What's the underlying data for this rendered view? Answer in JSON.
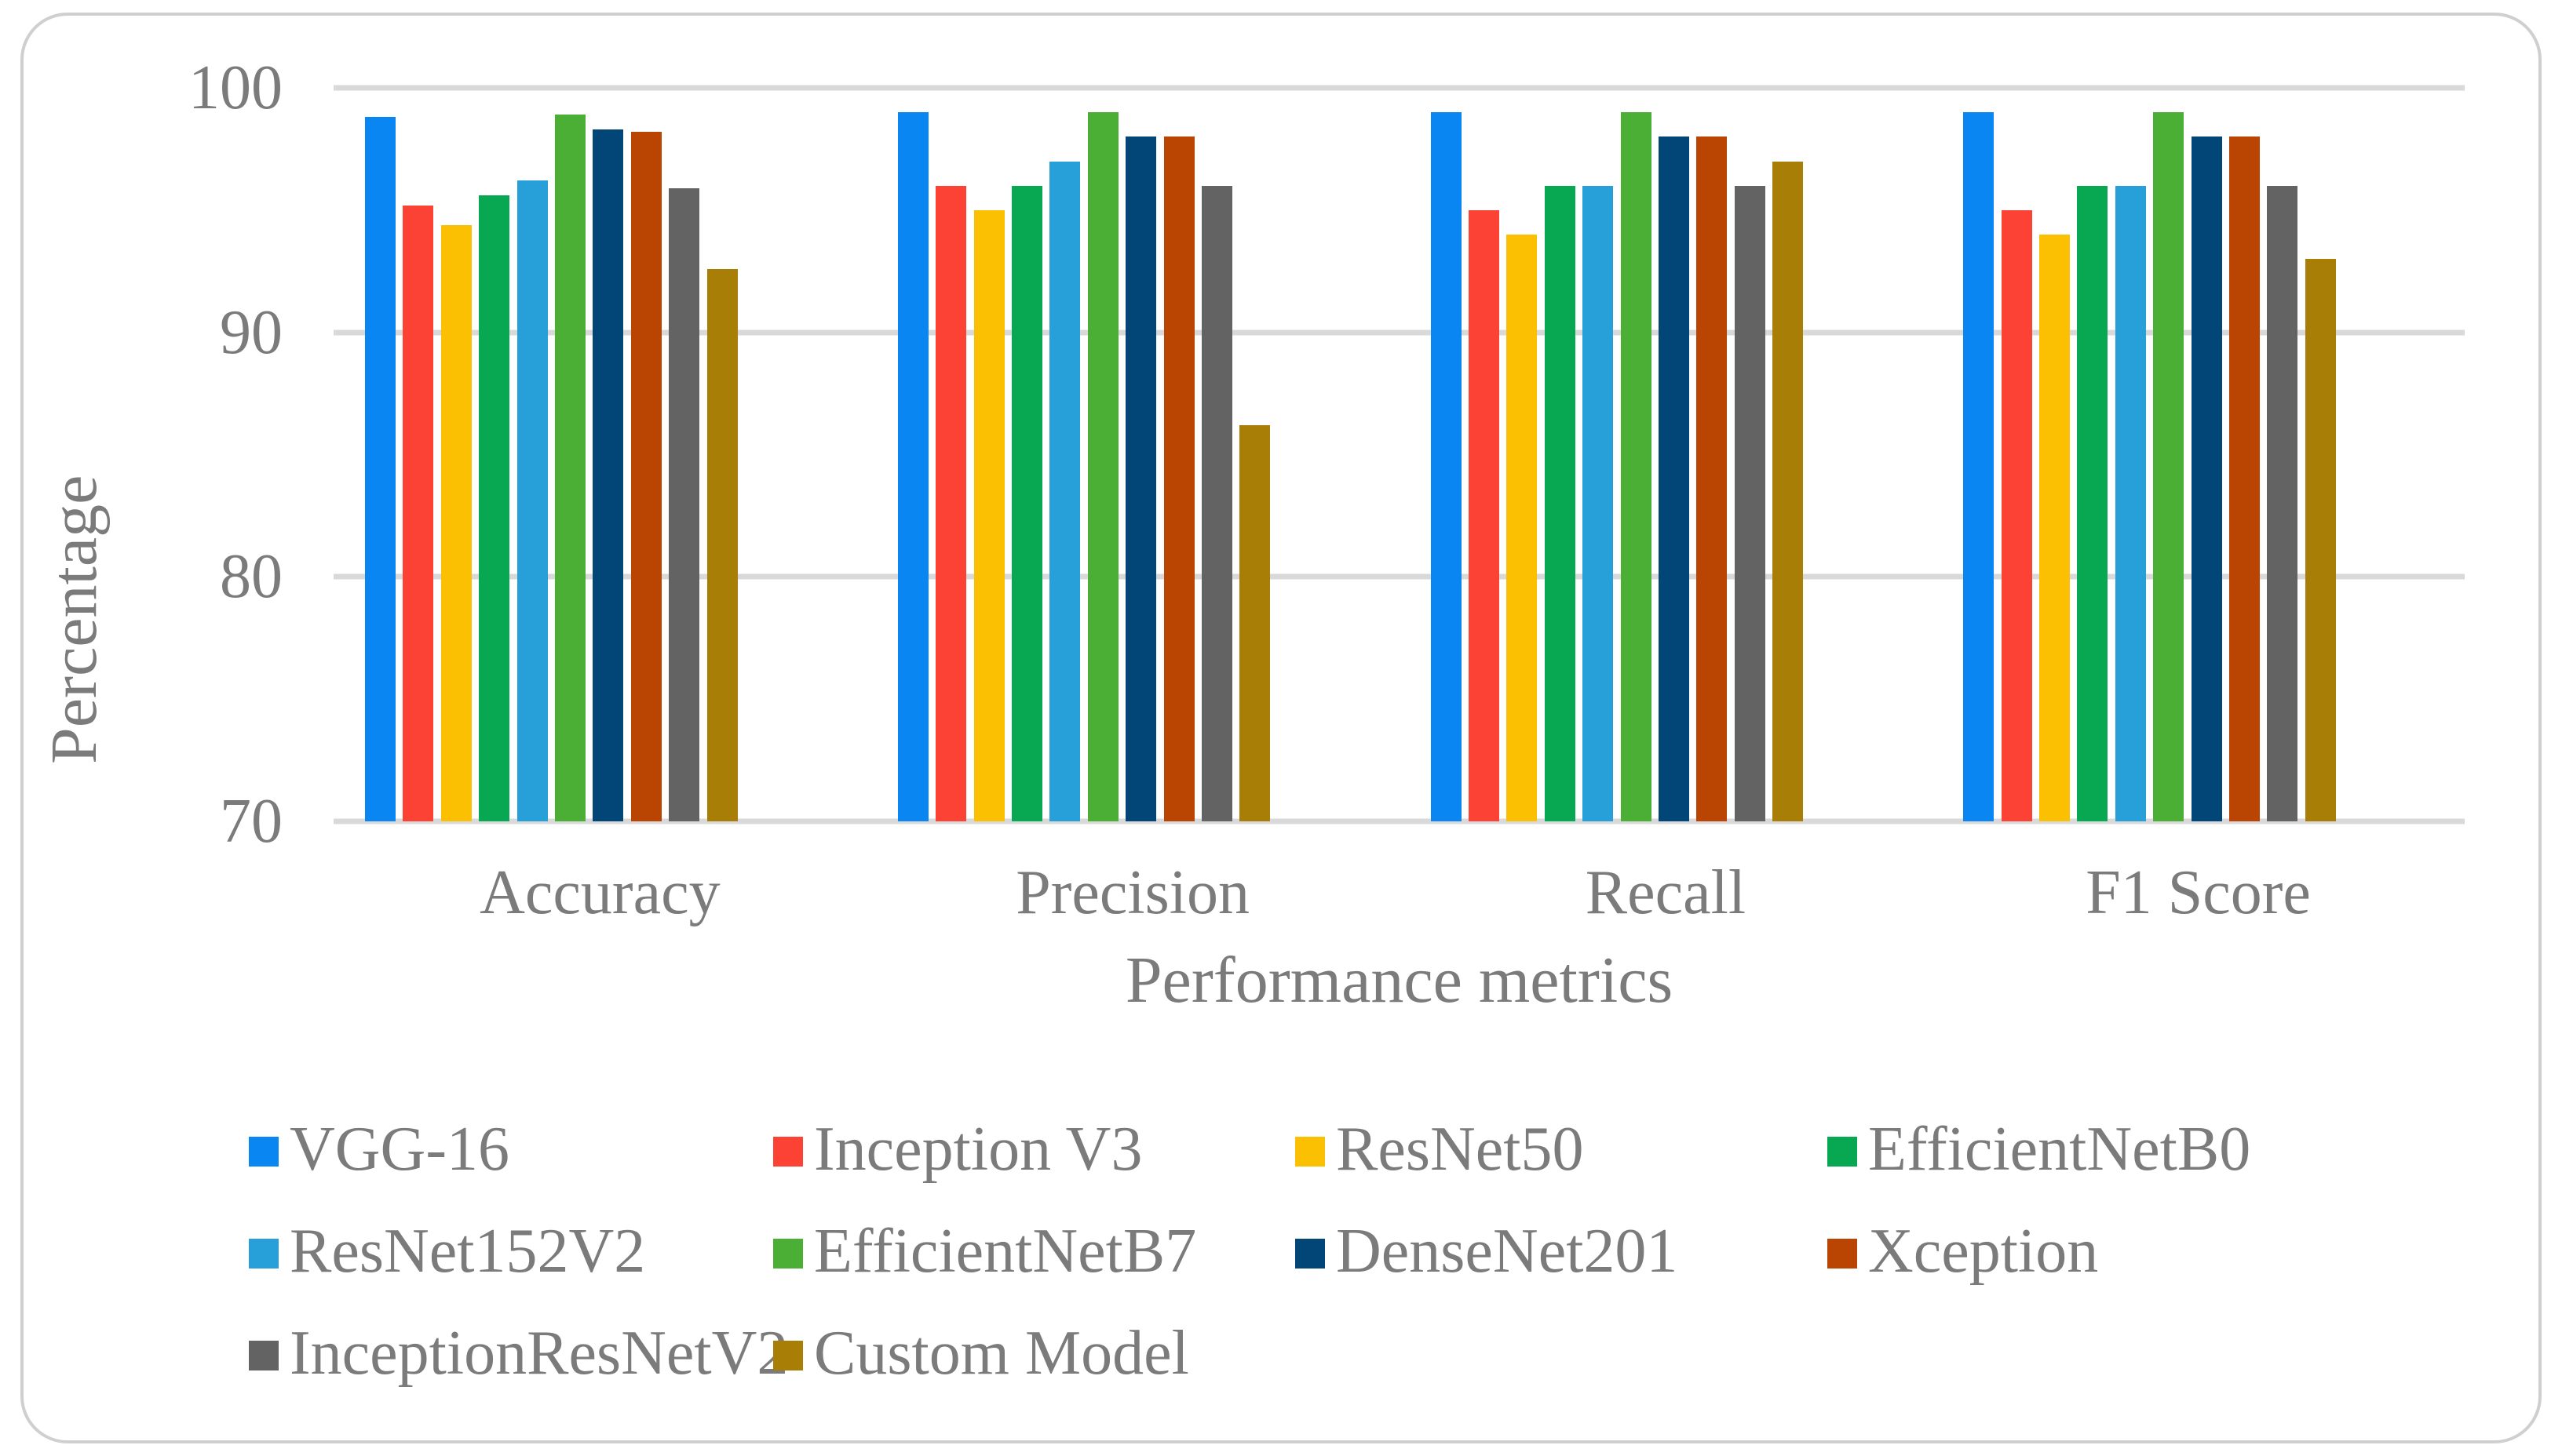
{
  "chart_data": {
    "type": "bar",
    "title": "",
    "categories": [
      "Accuracy",
      "Precision",
      "Recall",
      "F1 Score"
    ],
    "series": [
      {
        "name": "VGG-16",
        "color": "#0a86f3",
        "values": [
          98.8,
          99.0,
          99.0,
          99.0
        ]
      },
      {
        "name": "Inception V3",
        "color": "#fc4135",
        "values": [
          95.2,
          96.0,
          95.0,
          95.0
        ]
      },
      {
        "name": "ResNet50",
        "color": "#fcc003",
        "values": [
          94.4,
          95.0,
          94.0,
          94.0
        ]
      },
      {
        "name": "EfficientNetB0",
        "color": "#07a851",
        "values": [
          95.6,
          96.0,
          96.0,
          96.0
        ]
      },
      {
        "name": "ResNet152V2",
        "color": "#27a0da",
        "values": [
          96.2,
          97.0,
          96.0,
          96.0
        ]
      },
      {
        "name": "EfficientNetB7",
        "color": "#4bae35",
        "values": [
          98.9,
          99.0,
          99.0,
          99.0
        ]
      },
      {
        "name": "DenseNet201",
        "color": "#024577",
        "values": [
          98.3,
          98.0,
          98.0,
          98.0
        ]
      },
      {
        "name": "Xception",
        "color": "#ba4502",
        "values": [
          98.2,
          98.0,
          98.0,
          98.0
        ]
      },
      {
        "name": "InceptionResNetV2",
        "color": "#636363",
        "values": [
          95.9,
          96.0,
          96.0,
          96.0
        ]
      },
      {
        "name": "Custom Model",
        "color": "#a97e06",
        "values": [
          92.6,
          86.2,
          97.0,
          93.0
        ]
      }
    ],
    "xlabel": "Performance metrics",
    "ylabel": "Percentage",
    "ylim": [
      70,
      100
    ],
    "yticks": [
      100,
      90,
      80,
      70
    ],
    "grid": "horizontal",
    "legend_position": "bottom",
    "gridline_color": "#d9d9d9",
    "text_color": "#7b7b7b",
    "frame_border_color": "#cfcfcf"
  }
}
